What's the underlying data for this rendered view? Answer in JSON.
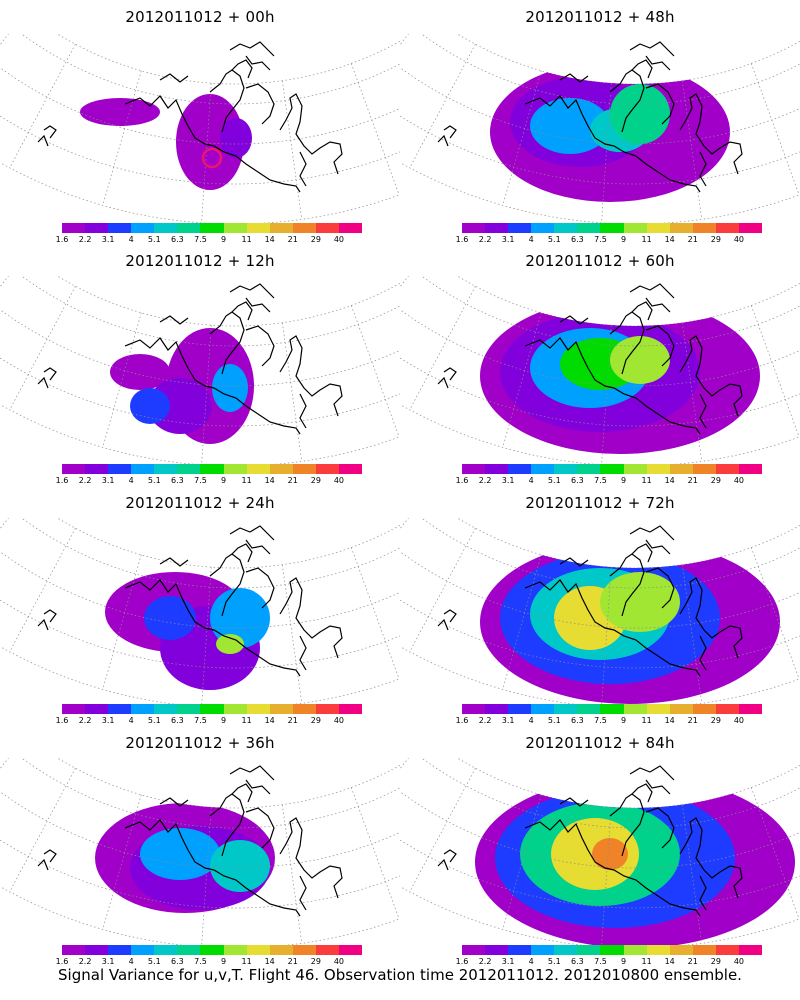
{
  "footer_caption": "Signal Variance for u,v,T. Flight 46. Observation time 2012011012. 2012010800 ensemble.",
  "colorbar": {
    "labels": [
      "1.6",
      "2.2",
      "3.1",
      "4",
      "5.1",
      "6.3",
      "7.5",
      "9",
      "11",
      "14",
      "21",
      "29",
      "40"
    ],
    "colors": [
      "#a000c8",
      "#8200dc",
      "#1e3cff",
      "#00a0ff",
      "#00c8c8",
      "#00d28c",
      "#00dc00",
      "#a0e632",
      "#e6dc32",
      "#e6af2d",
      "#f08228",
      "#fa3c3c",
      "#f00082"
    ]
  },
  "panels": [
    {
      "title": "2012011012 + 00h",
      "lead": "00h",
      "level": 0
    },
    {
      "title": "2012011012 + 48h",
      "lead": "48h",
      "level": 4
    },
    {
      "title": "2012011012 + 12h",
      "lead": "12h",
      "level": 1
    },
    {
      "title": "2012011012 + 60h",
      "lead": "60h",
      "level": 5
    },
    {
      "title": "2012011012 + 24h",
      "lead": "24h",
      "level": 2
    },
    {
      "title": "2012011012 + 72h",
      "lead": "72h",
      "level": 6
    },
    {
      "title": "2012011012 + 36h",
      "lead": "36h",
      "level": 3
    },
    {
      "title": "2012011012 + 84h",
      "lead": "84h",
      "level": 7
    }
  ]
}
